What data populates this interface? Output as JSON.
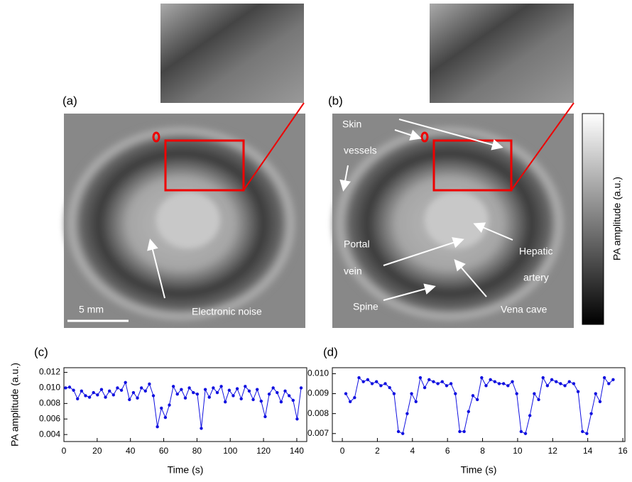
{
  "figure": {
    "panel_a": "(a)",
    "panel_b": "(b)",
    "scale_bar": "5 mm",
    "noise": "Electronic noise",
    "skin": "Skin",
    "vessels": "vessels",
    "portal": "Portal",
    "vein": "vein",
    "hepatic": "Hepatic",
    "artery": "artery",
    "spine": "Spine",
    "vena": "Vena cave",
    "colorbar_label": "PA amplitude (a.u.)"
  },
  "chart_data": [
    {
      "type": "line",
      "panel": "(c)",
      "x_label": "Time (s)",
      "y_label": "PA amplitude (a.u.)",
      "color": "#1010e0",
      "xlim": [
        0,
        146
      ],
      "xticks": [
        0,
        20,
        40,
        60,
        80,
        100,
        120,
        140
      ],
      "ylim": [
        0.0031,
        0.0126
      ],
      "yticks": [
        0.004,
        0.006,
        0.008,
        {
          "value": 0.01,
          "label": "0.010"
        },
        0.012
      ],
      "x": [
        1,
        3.4,
        5.8,
        8.2,
        10.6,
        13,
        15.4,
        17.8,
        20.2,
        22.6,
        25,
        27.4,
        29.8,
        32.2,
        34.6,
        37,
        39.4,
        41.8,
        44.2,
        46.6,
        49,
        51.4,
        53.8,
        56.2,
        58.6,
        61,
        63.4,
        65.8,
        68.2,
        70.6,
        73,
        75.4,
        77.8,
        80.2,
        82.6,
        85,
        87.4,
        89.8,
        92.2,
        94.6,
        97,
        99.4,
        101.8,
        104.2,
        106.6,
        109,
        111.4,
        113.8,
        116.2,
        118.6,
        121,
        123.4,
        125.8,
        128.2,
        130.6,
        133,
        135.4,
        137.8,
        140.2,
        142.6
      ],
      "values": [
        0.01,
        0.0101,
        0.0097,
        0.0086,
        0.0096,
        0.009,
        0.0088,
        0.0094,
        0.0091,
        0.0098,
        0.0088,
        0.0096,
        0.0091,
        0.01,
        0.0097,
        0.0107,
        0.0085,
        0.0094,
        0.0087,
        0.01,
        0.0096,
        0.0105,
        0.009,
        0.005,
        0.0074,
        0.0062,
        0.0078,
        0.0102,
        0.0092,
        0.0098,
        0.0087,
        0.01,
        0.0094,
        0.0092,
        0.0048,
        0.0098,
        0.0088,
        0.01,
        0.0094,
        0.0102,
        0.0082,
        0.0097,
        0.009,
        0.0099,
        0.0086,
        0.0102,
        0.0096,
        0.0085,
        0.0098,
        0.0083,
        0.0063,
        0.0092,
        0.01,
        0.0094,
        0.0082,
        0.0096,
        0.009,
        0.0084,
        0.006,
        0.01
      ]
    },
    {
      "type": "line",
      "panel": "(d)",
      "x_label": "Time (s)",
      "color": "#1010e0",
      "xlim": [
        -0.57,
        16.12
      ],
      "xticks": [
        0,
        2,
        4,
        6,
        8,
        10,
        12,
        14,
        16
      ],
      "ylim": [
        0.0066,
        0.0103
      ],
      "yticks": [
        0.007,
        0.008,
        0.009,
        {
          "value": 0.01,
          "label": "0.010"
        }
      ],
      "x": [
        0.2,
        0.45,
        0.7,
        0.95,
        1.2,
        1.45,
        1.7,
        1.95,
        2.2,
        2.45,
        2.7,
        2.95,
        3.2,
        3.45,
        3.7,
        3.95,
        4.2,
        4.45,
        4.7,
        4.95,
        5.2,
        5.45,
        5.7,
        5.95,
        6.2,
        6.45,
        6.7,
        6.95,
        7.2,
        7.45,
        7.7,
        7.95,
        8.2,
        8.45,
        8.7,
        8.95,
        9.2,
        9.45,
        9.7,
        9.95,
        10.2,
        10.45,
        10.7,
        10.95,
        11.2,
        11.45,
        11.7,
        11.95,
        12.2,
        12.45,
        12.7,
        12.95,
        13.2,
        13.45,
        13.7,
        13.95,
        14.2,
        14.45,
        14.7,
        14.95,
        15.2,
        15.45
      ],
      "values": [
        0.009,
        0.0086,
        0.0088,
        0.0098,
        0.0096,
        0.0097,
        0.0095,
        0.0096,
        0.0094,
        0.0095,
        0.0093,
        0.009,
        0.0071,
        0.007,
        0.008,
        0.009,
        0.0086,
        0.0098,
        0.0093,
        0.0097,
        0.0096,
        0.0095,
        0.0096,
        0.0094,
        0.0095,
        0.009,
        0.0071,
        0.0071,
        0.0081,
        0.0089,
        0.0087,
        0.0098,
        0.0094,
        0.0097,
        0.0096,
        0.0095,
        0.0095,
        0.0094,
        0.0096,
        0.009,
        0.0071,
        0.007,
        0.0079,
        0.009,
        0.0087,
        0.0098,
        0.0094,
        0.0097,
        0.0096,
        0.0095,
        0.0094,
        0.0096,
        0.0095,
        0.0091,
        0.0071,
        0.007,
        0.008,
        0.009,
        0.0086,
        0.0098,
        0.0095,
        0.0097
      ]
    }
  ]
}
